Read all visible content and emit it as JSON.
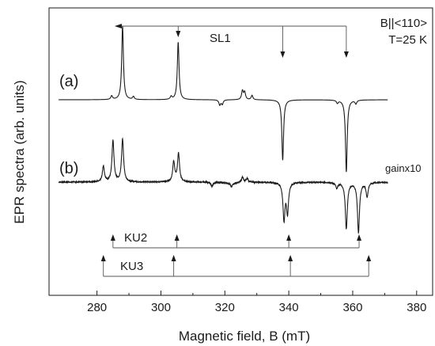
{
  "chart_data": {
    "type": "line",
    "title": "",
    "xlabel": "Magnetic field, B (mT)",
    "ylabel": "EPR spectra (arb. units)",
    "xlim": [
      265,
      385
    ],
    "x_ticks": [
      "280",
      "300",
      "320",
      "340",
      "360",
      "380"
    ],
    "y_ticks": [],
    "grid": false,
    "legend": "none",
    "annotations": {
      "orientation": "B||<110>",
      "temperature": "T=25 K",
      "gain": "gainx10",
      "panel_a": "(a)",
      "panel_b": "(b)"
    },
    "series": [
      {
        "label": "(a)",
        "lines": [
          {
            "x": 288.0,
            "amp": 1.0
          },
          {
            "x": 305.4,
            "amp": 0.78
          },
          {
            "x": 338.1,
            "amp": -0.82
          },
          {
            "x": 358.0,
            "amp": -0.98
          },
          {
            "x": 284.6,
            "amp": 0.05
          },
          {
            "x": 291.4,
            "amp": 0.04
          },
          {
            "x": 303.2,
            "amp": 0.04
          },
          {
            "x": 318.4,
            "amp": -0.07
          },
          {
            "x": 319.2,
            "amp": -0.06
          },
          {
            "x": 325.5,
            "amp": 0.12
          },
          {
            "x": 326.2,
            "amp": 0.1
          },
          {
            "x": 328.5,
            "amp": 0.06
          },
          {
            "x": 355.2,
            "amp": -0.04
          },
          {
            "x": 361.0,
            "amp": -0.05
          }
        ]
      },
      {
        "label": "(b)",
        "lines": [
          {
            "x": 282.0,
            "amp": 0.22
          },
          {
            "x": 285.0,
            "amp": 0.58
          },
          {
            "x": 288.0,
            "amp": 0.6
          },
          {
            "x": 304.0,
            "amp": 0.28
          },
          {
            "x": 305.5,
            "amp": 0.4
          },
          {
            "x": 338.5,
            "amp": -0.52
          },
          {
            "x": 339.6,
            "amp": -0.42
          },
          {
            "x": 358.0,
            "amp": -0.65
          },
          {
            "x": 361.8,
            "amp": -0.7
          },
          {
            "x": 364.5,
            "amp": -0.2
          },
          {
            "x": 316.0,
            "amp": -0.06
          },
          {
            "x": 322.0,
            "amp": -0.05
          },
          {
            "x": 325.5,
            "amp": 0.07
          },
          {
            "x": 327.0,
            "amp": 0.05
          },
          {
            "x": 355.0,
            "amp": -0.08
          }
        ]
      }
    ],
    "line_sets": [
      {
        "name": "SL1",
        "x": [
          288.0,
          305.4,
          338.1,
          358.0
        ]
      },
      {
        "name": "KU2",
        "x": [
          285.0,
          305.0,
          340.0,
          362.0
        ]
      },
      {
        "name": "KU3",
        "x": [
          282.0,
          304.0,
          340.5,
          365.0
        ]
      }
    ]
  }
}
